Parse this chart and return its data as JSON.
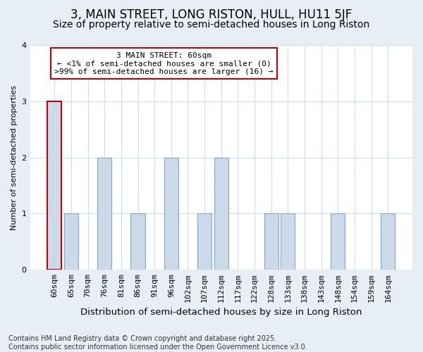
{
  "title": "3, MAIN STREET, LONG RISTON, HULL, HU11 5JF",
  "subtitle": "Size of property relative to semi-detached houses in Long Riston",
  "xlabel": "Distribution of semi-detached houses by size in Long Riston",
  "ylabel": "Number of semi-detached properties",
  "categories": [
    "60sqm",
    "65sqm",
    "70sqm",
    "76sqm",
    "81sqm",
    "86sqm",
    "91sqm",
    "96sqm",
    "102sqm",
    "107sqm",
    "112sqm",
    "117sqm",
    "122sqm",
    "128sqm",
    "133sqm",
    "138sqm",
    "143sqm",
    "148sqm",
    "154sqm",
    "159sqm",
    "164sqm"
  ],
  "values": [
    3,
    1,
    0,
    2,
    0,
    1,
    0,
    2,
    0,
    1,
    2,
    0,
    0,
    1,
    1,
    0,
    0,
    1,
    0,
    0,
    1
  ],
  "bar_color": "#ccd9e8",
  "bar_edge_color": "#7aaad0",
  "highlight_border_color": "#cc0000",
  "background_color": "#e8eef5",
  "plot_bg_color": "#ffffff",
  "annotation_text": "3 MAIN STREET: 60sqm\n← <1% of semi-detached houses are smaller (0)\n>99% of semi-detached houses are larger (16) →",
  "annotation_box_color": "#ffffff",
  "annotation_border_color": "#cc0000",
  "ylim": [
    0,
    4
  ],
  "yticks": [
    0,
    1,
    2,
    3,
    4
  ],
  "title_fontsize": 12,
  "subtitle_fontsize": 10,
  "xlabel_fontsize": 9.5,
  "ylabel_fontsize": 8,
  "tick_fontsize": 8,
  "annotation_fontsize": 8,
  "footnote": "Contains HM Land Registry data © Crown copyright and database right 2025.\nContains public sector information licensed under the Open Government Licence v3.0.",
  "footnote_fontsize": 7
}
